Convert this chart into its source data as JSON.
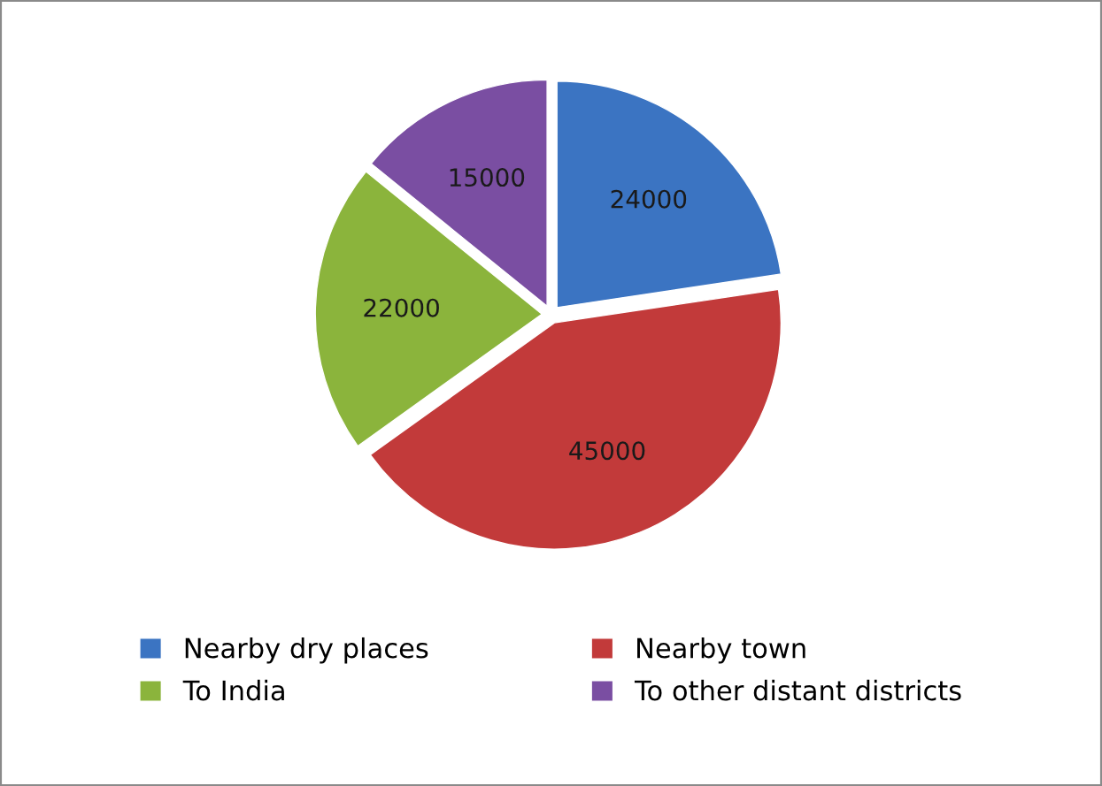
{
  "chart_data": {
    "type": "pie",
    "categories": [
      "Nearby dry places",
      "Nearby town",
      "To India",
      "To other distant districts"
    ],
    "values": [
      24000,
      45000,
      22000,
      15000
    ],
    "colors": [
      "#3b74c2",
      "#c23a3a",
      "#8bb43c",
      "#7a4ea2"
    ],
    "data_labels": true,
    "legend": "bottom"
  }
}
